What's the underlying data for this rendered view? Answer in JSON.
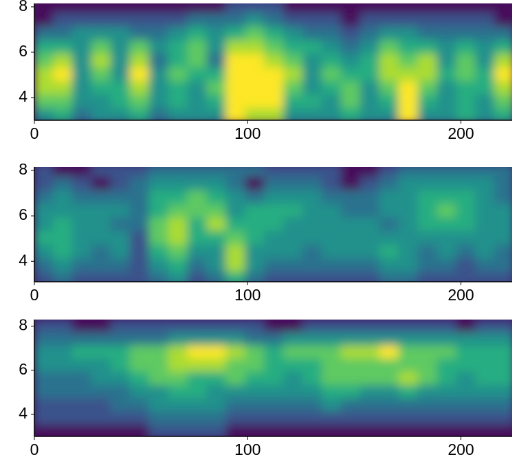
{
  "chart_data": [
    {
      "type": "heatmap",
      "x": [
        4.5,
        13.5,
        22.5,
        31.5,
        40.5,
        49.5,
        58.5,
        67.5,
        76.5,
        85.5,
        94.5,
        103.5,
        112.5,
        121.5,
        130.5,
        139.5,
        148.5,
        157.5,
        166.5,
        175.5,
        184.5,
        193.5,
        202.5,
        211.5,
        220.5
      ],
      "y": [
        8,
        7.4,
        6.8,
        6.2,
        5.6,
        5,
        4.4,
        3.8,
        3.2
      ],
      "z": [
        [
          0,
          0,
          0,
          0,
          0,
          0,
          0,
          0,
          0,
          0,
          1,
          1,
          1,
          0,
          0,
          0,
          0,
          0,
          0,
          0,
          0,
          0,
          0,
          0,
          0
        ],
        [
          0,
          1,
          1,
          1,
          1,
          1,
          1,
          1,
          2,
          2,
          2,
          3,
          2,
          1,
          1,
          1,
          0,
          1,
          1,
          1,
          1,
          1,
          1,
          1,
          0
        ],
        [
          2,
          2,
          3,
          3,
          3,
          2,
          2,
          3,
          4,
          3,
          4,
          5,
          4,
          3,
          2,
          2,
          1,
          2,
          3,
          3,
          2,
          2,
          2,
          2,
          2
        ],
        [
          4,
          4,
          3,
          5,
          3,
          5,
          3,
          4,
          5,
          3,
          6,
          6,
          5,
          4,
          4,
          3,
          2,
          3,
          5,
          4,
          4,
          3,
          4,
          3,
          4
        ],
        [
          5,
          6,
          3,
          6,
          3,
          6,
          2,
          4,
          5,
          2,
          7,
          7,
          6,
          5,
          3,
          4,
          3,
          4,
          6,
          5,
          6,
          3,
          5,
          3,
          6
        ],
        [
          6,
          7,
          3,
          5,
          3,
          7,
          3,
          5,
          4,
          4,
          7,
          7,
          7,
          6,
          3,
          5,
          4,
          4,
          6,
          6,
          6,
          4,
          5,
          4,
          7
        ],
        [
          6,
          6,
          3,
          4,
          4,
          6,
          3,
          4,
          3,
          5,
          7,
          7,
          7,
          5,
          3,
          4,
          5,
          3,
          5,
          7,
          5,
          3,
          4,
          4,
          6
        ],
        [
          5,
          5,
          3,
          3,
          4,
          5,
          3,
          4,
          3,
          4,
          7,
          7,
          7,
          4,
          4,
          3,
          5,
          3,
          4,
          7,
          4,
          3,
          4,
          3,
          5
        ],
        [
          3,
          4,
          2,
          3,
          3,
          4,
          2,
          3,
          3,
          3,
          7,
          6,
          6,
          3,
          3,
          3,
          4,
          3,
          3,
          7,
          3,
          3,
          4,
          3,
          4
        ]
      ],
      "colors": [
        "#46085c",
        "#3b528b",
        "#2c728e",
        "#21918c",
        "#27ad81",
        "#5ec962",
        "#aadc32",
        "#fde725"
      ],
      "xlim": [
        0,
        224
      ],
      "ylim": [
        3,
        8.15
      ],
      "xticks": [
        0,
        100,
        200
      ],
      "yticks": [
        4,
        6,
        8
      ]
    },
    {
      "type": "heatmap",
      "x": [
        4.5,
        13.5,
        22.5,
        31.5,
        40.5,
        49.5,
        58.5,
        67.5,
        76.5,
        85.5,
        94.5,
        103.5,
        112.5,
        121.5,
        130.5,
        139.5,
        148.5,
        157.5,
        166.5,
        175.5,
        184.5,
        193.5,
        202.5,
        211.5,
        220.5
      ],
      "y": [
        8,
        7.4,
        6.8,
        6.2,
        5.6,
        5,
        4.4,
        3.8,
        3.2
      ],
      "z": [
        [
          1,
          0,
          0,
          1,
          1,
          1,
          2,
          2,
          2,
          2,
          2,
          2,
          1,
          1,
          1,
          1,
          0,
          0,
          1,
          2,
          2,
          2,
          2,
          2,
          2
        ],
        [
          1,
          2,
          1,
          0,
          1,
          2,
          3,
          3,
          3,
          3,
          2,
          0,
          2,
          2,
          2,
          1,
          0,
          1,
          2,
          3,
          3,
          3,
          3,
          3,
          2
        ],
        [
          2,
          3,
          2,
          2,
          2,
          2,
          4,
          4,
          5,
          4,
          3,
          2,
          3,
          3,
          3,
          2,
          2,
          2,
          3,
          3,
          4,
          4,
          4,
          3,
          2
        ],
        [
          3,
          3,
          3,
          3,
          3,
          2,
          4,
          5,
          5,
          5,
          3,
          4,
          4,
          4,
          3,
          3,
          2,
          2,
          3,
          3,
          4,
          5,
          4,
          3,
          3
        ],
        [
          3,
          4,
          3,
          3,
          2,
          2,
          5,
          6,
          4,
          6,
          4,
          4,
          4,
          3,
          3,
          3,
          3,
          3,
          2,
          3,
          4,
          4,
          4,
          3,
          3
        ],
        [
          4,
          4,
          3,
          3,
          3,
          1,
          5,
          6,
          4,
          4,
          5,
          4,
          3,
          3,
          3,
          3,
          3,
          3,
          3,
          3,
          3,
          3,
          3,
          3,
          3
        ],
        [
          3,
          4,
          3,
          2,
          3,
          1,
          4,
          5,
          3,
          3,
          6,
          3,
          3,
          3,
          2,
          3,
          3,
          3,
          4,
          3,
          2,
          3,
          2,
          3,
          2
        ],
        [
          2,
          3,
          2,
          2,
          2,
          1,
          3,
          4,
          2,
          3,
          6,
          3,
          2,
          2,
          2,
          2,
          2,
          2,
          3,
          3,
          2,
          2,
          1,
          2,
          2
        ],
        [
          1,
          2,
          1,
          1,
          1,
          1,
          2,
          3,
          1,
          2,
          4,
          2,
          1,
          1,
          1,
          1,
          1,
          1,
          2,
          2,
          1,
          1,
          1,
          1,
          1
        ]
      ],
      "colors": [
        "#46085c",
        "#3b528b",
        "#2c728e",
        "#21918c",
        "#27ad81",
        "#5ec962",
        "#aadc32",
        "#fde725"
      ],
      "xlim": [
        0,
        224
      ],
      "ylim": [
        3.1,
        8.15
      ],
      "xticks": [
        0,
        100,
        200
      ],
      "yticks": [
        4,
        6,
        8
      ]
    },
    {
      "type": "heatmap",
      "x": [
        4.5,
        13.5,
        22.5,
        31.5,
        40.5,
        49.5,
        58.5,
        67.5,
        76.5,
        85.5,
        94.5,
        103.5,
        112.5,
        121.5,
        130.5,
        139.5,
        148.5,
        157.5,
        166.5,
        175.5,
        184.5,
        193.5,
        202.5,
        211.5,
        220.5
      ],
      "y": [
        8,
        7.4,
        6.8,
        6.2,
        5.6,
        5,
        4.4,
        3.8,
        3.2
      ],
      "z": [
        [
          1,
          1,
          0,
          0,
          1,
          1,
          1,
          1,
          1,
          1,
          1,
          1,
          0,
          0,
          1,
          1,
          1,
          1,
          1,
          1,
          1,
          1,
          0,
          1,
          1
        ],
        [
          2,
          2,
          2,
          2,
          2,
          2,
          2,
          3,
          3,
          3,
          3,
          2,
          2,
          3,
          3,
          3,
          3,
          3,
          3,
          3,
          3,
          3,
          3,
          3,
          3
        ],
        [
          3,
          3,
          4,
          4,
          4,
          5,
          5,
          6,
          7,
          7,
          6,
          5,
          4,
          5,
          5,
          5,
          6,
          6,
          7,
          5,
          5,
          5,
          4,
          4,
          4
        ],
        [
          3,
          3,
          3,
          3,
          4,
          5,
          5,
          6,
          6,
          6,
          5,
          5,
          4,
          4,
          4,
          5,
          5,
          5,
          5,
          5,
          5,
          4,
          4,
          4,
          4
        ],
        [
          2,
          2,
          2,
          3,
          3,
          4,
          5,
          5,
          4,
          4,
          5,
          4,
          4,
          3,
          4,
          5,
          5,
          5,
          5,
          6,
          5,
          4,
          3,
          4,
          4
        ],
        [
          2,
          2,
          2,
          2,
          2,
          3,
          3,
          4,
          4,
          3,
          3,
          3,
          3,
          3,
          3,
          4,
          4,
          3,
          3,
          4,
          3,
          3,
          3,
          3,
          3
        ],
        [
          1,
          1,
          1,
          1,
          2,
          2,
          3,
          3,
          3,
          3,
          2,
          2,
          2,
          2,
          2,
          3,
          2,
          2,
          2,
          2,
          2,
          2,
          2,
          2,
          2
        ],
        [
          1,
          1,
          1,
          1,
          1,
          1,
          2,
          2,
          2,
          2,
          1,
          1,
          1,
          1,
          1,
          1,
          1,
          1,
          1,
          1,
          1,
          1,
          1,
          1,
          1
        ],
        [
          0,
          0,
          0,
          0,
          0,
          0,
          1,
          1,
          1,
          1,
          0,
          0,
          0,
          0,
          0,
          0,
          0,
          0,
          0,
          0,
          0,
          0,
          0,
          0,
          0
        ]
      ],
      "colors": [
        "#46085c",
        "#3b528b",
        "#2c728e",
        "#21918c",
        "#27ad81",
        "#5ec962",
        "#aadc32",
        "#fde725"
      ],
      "xlim": [
        0,
        224
      ],
      "ylim": [
        3,
        8.3
      ],
      "xticks": [
        0,
        100,
        200
      ],
      "yticks": [
        4,
        6,
        8
      ]
    }
  ]
}
